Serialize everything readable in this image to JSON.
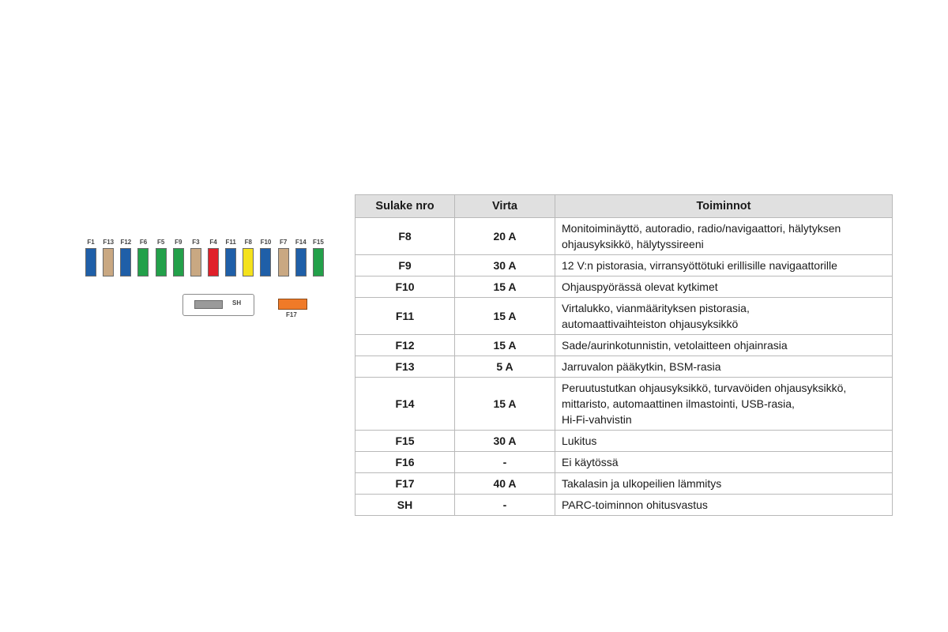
{
  "diagram": {
    "fuses": [
      {
        "label": "F1",
        "color": "#1f5fa8"
      },
      {
        "label": "F13",
        "color": "#c9a882"
      },
      {
        "label": "F12",
        "color": "#1f5fa8"
      },
      {
        "label": "F6",
        "color": "#23a04a"
      },
      {
        "label": "F5",
        "color": "#23a04a"
      },
      {
        "label": "F9",
        "color": "#23a04a"
      },
      {
        "label": "F3",
        "color": "#c9a882"
      },
      {
        "label": "F4",
        "color": "#e0202a"
      },
      {
        "label": "F11",
        "color": "#1f5fa8"
      },
      {
        "label": "F8",
        "color": "#f4e21c"
      },
      {
        "label": "F10",
        "color": "#1f5fa8"
      },
      {
        "label": "F7",
        "color": "#c9a882"
      },
      {
        "label": "F14",
        "color": "#1f5fa8"
      },
      {
        "label": "F15",
        "color": "#23a04a"
      }
    ],
    "sh_label": "SH",
    "sh_color": "#9a9a9a",
    "f17_label": "F17",
    "f17_color": "#f07a28"
  },
  "table": {
    "headers": [
      "Sulake nro",
      "Virta",
      "Toiminnot"
    ],
    "rows": [
      {
        "fuse": "F8",
        "current": "20 A",
        "lines": [
          "Monitoiminäyttö, autoradio, radio/navigaattori, hälytyksen",
          "ohjausyksikkö, hälytyssireeni"
        ]
      },
      {
        "fuse": "F9",
        "current": "30 A",
        "lines": [
          "12 V:n pistorasia, virransyöttötuki erillisille navigaattorille"
        ]
      },
      {
        "fuse": "F10",
        "current": "15 A",
        "lines": [
          "Ohjauspyörässä olevat kytkimet"
        ]
      },
      {
        "fuse": "F11",
        "current": "15 A",
        "lines": [
          "Virtalukko, vianmäärityksen pistorasia,",
          "automaattivaihteiston ohjausyksikkö"
        ]
      },
      {
        "fuse": "F12",
        "current": "15 A",
        "lines": [
          "Sade/aurinkotunnistin, vetolaitteen ohjainrasia"
        ]
      },
      {
        "fuse": "F13",
        "current": "5 A",
        "lines": [
          "Jarruvalon pääkytkin, BSM-rasia"
        ]
      },
      {
        "fuse": "F14",
        "current": "15 A",
        "lines": [
          "Peruutustutkan ohjausyksikkö, turvavöiden ohjausyksikkö,",
          "mittaristo, automaattinen ilmastointi, USB-rasia,",
          "Hi-Fi-vahvistin"
        ]
      },
      {
        "fuse": "F15",
        "current": "30 A",
        "lines": [
          "Lukitus"
        ]
      },
      {
        "fuse": "F16",
        "current": "-",
        "lines": [
          "Ei käytössä"
        ]
      },
      {
        "fuse": "F17",
        "current": "40 A",
        "lines": [
          "Takalasin ja ulkopeilien lämmitys"
        ]
      },
      {
        "fuse": "SH",
        "current": "-",
        "lines": [
          "PARC-toiminnon ohitusvastus"
        ]
      }
    ]
  }
}
